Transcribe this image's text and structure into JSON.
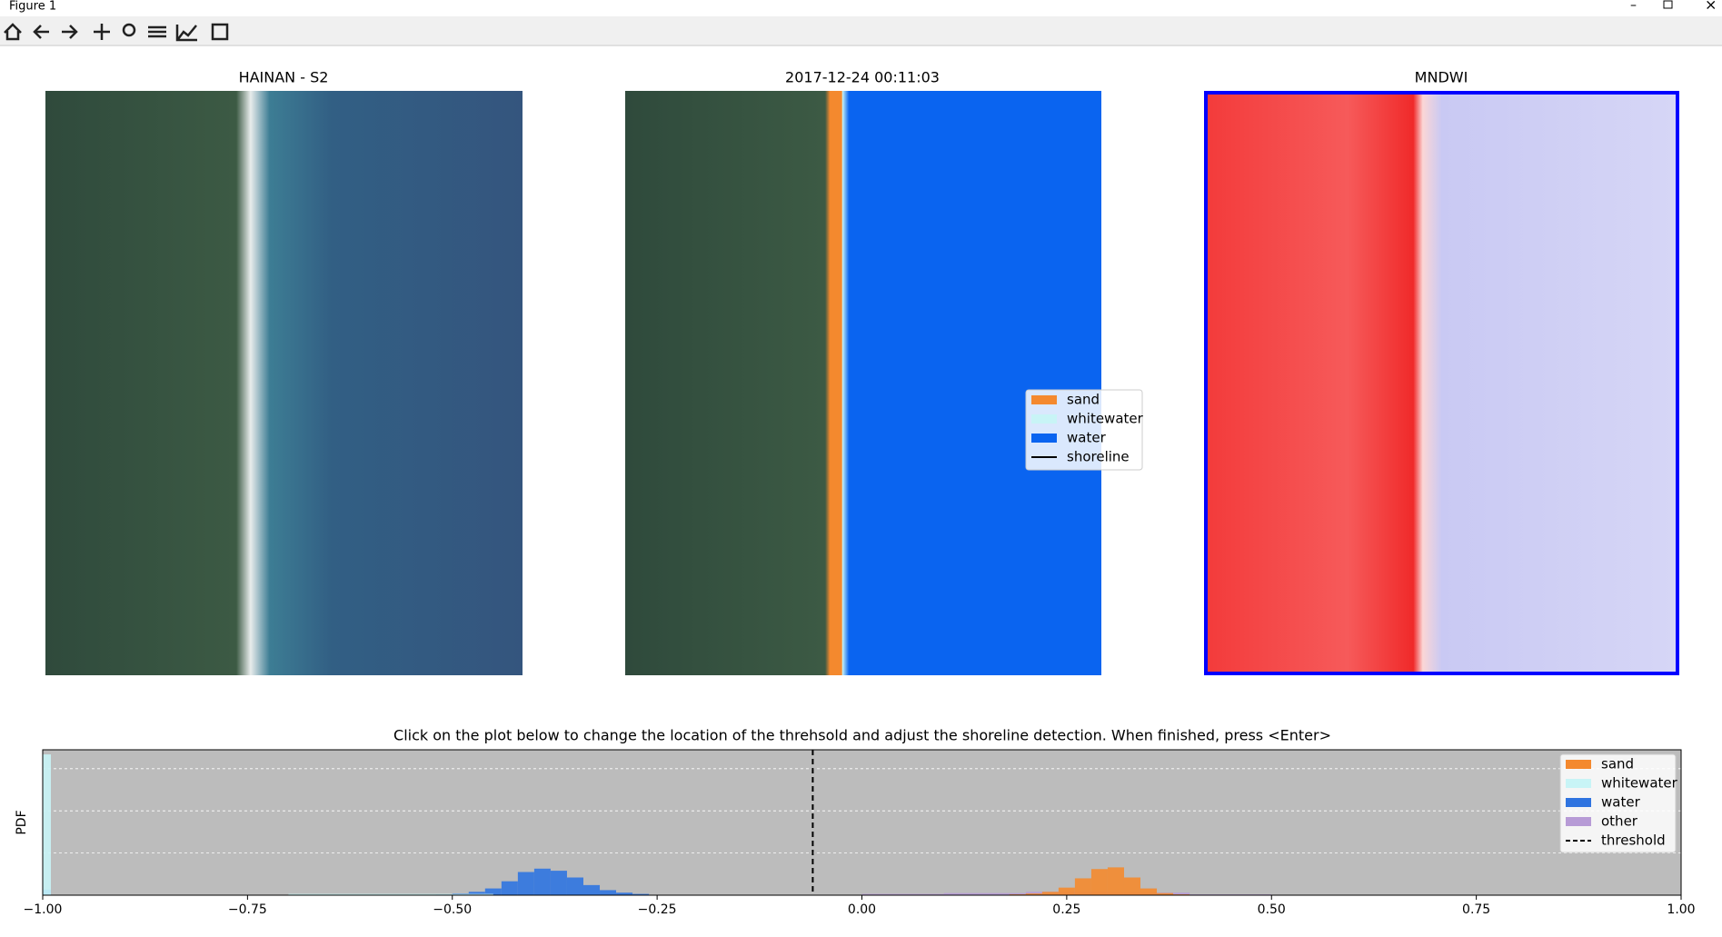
{
  "window": {
    "title": "Figure 1"
  },
  "panels": [
    {
      "title": "HAINAN - S2"
    },
    {
      "title": "2017-12-24  00:11:03",
      "legend": [
        {
          "name": "sand",
          "color": "#f4892e"
        },
        {
          "name": "whitewater",
          "color": "#c8f4f6"
        },
        {
          "name": "water",
          "color": "#0a64f0"
        },
        {
          "name": "shoreline",
          "color": "#000000"
        }
      ]
    },
    {
      "title": "MNDWI"
    }
  ],
  "chart_data": {
    "type": "histogram",
    "title": "Click on the plot below to change the location of the threhsold and adjust the shoreline detection. When finished, press <Enter>",
    "ylabel": "PDF",
    "xlim": [
      -1,
      1
    ],
    "ylim": [
      0,
      3.45
    ],
    "xticks": [
      {
        "value": -1,
        "label": "−1.00"
      },
      {
        "value": -0.75,
        "label": "−0.75"
      },
      {
        "value": -0.5,
        "label": "−0.50"
      },
      {
        "value": -0.25,
        "label": "−0.25"
      },
      {
        "value": 0,
        "label": "0.00"
      },
      {
        "value": 0.25,
        "label": "0.25"
      },
      {
        "value": 0.5,
        "label": "0.50"
      },
      {
        "value": 0.75,
        "label": "0.75"
      },
      {
        "value": 1,
        "label": "1.00"
      }
    ],
    "threshold": {
      "value": -0.06,
      "label": "threshold"
    },
    "series": [
      {
        "name": "sand",
        "color": "#f4892e",
        "bins": [
          0.18,
          0.2,
          0.22,
          0.24,
          0.26,
          0.28,
          0.3,
          0.32,
          0.34,
          0.36,
          0.38,
          0.4
        ],
        "values": [
          0.02,
          0.04,
          0.08,
          0.18,
          0.4,
          0.62,
          0.66,
          0.42,
          0.16,
          0.05,
          0.02
        ]
      },
      {
        "name": "whitewater",
        "color": "#c8f4f6",
        "bins": [
          -1.0,
          -0.99,
          -0.7,
          -0.45
        ],
        "values": [
          3.34,
          0.003,
          0.03
        ]
      },
      {
        "name": "water",
        "color": "#2f74e0",
        "bins": [
          -1.0,
          -0.99,
          -0.6,
          -0.52,
          -0.5,
          -0.48,
          -0.46,
          -0.44,
          -0.42,
          -0.4,
          -0.38,
          -0.36,
          -0.34,
          -0.32,
          -0.3,
          -0.28,
          -0.26,
          -0.24
        ],
        "values": [
          0.13,
          0.004,
          0.01,
          0.02,
          0.04,
          0.08,
          0.16,
          0.33,
          0.55,
          0.63,
          0.58,
          0.42,
          0.24,
          0.12,
          0.06,
          0.03,
          0.01
        ]
      },
      {
        "name": "other",
        "color": "#b79bd6",
        "bins": [
          -0.1,
          0.0,
          0.1,
          0.2,
          0.3,
          0.4,
          0.5
        ],
        "values": [
          0.01,
          0.03,
          0.05,
          0.08,
          0.06,
          0.02
        ]
      }
    ]
  }
}
